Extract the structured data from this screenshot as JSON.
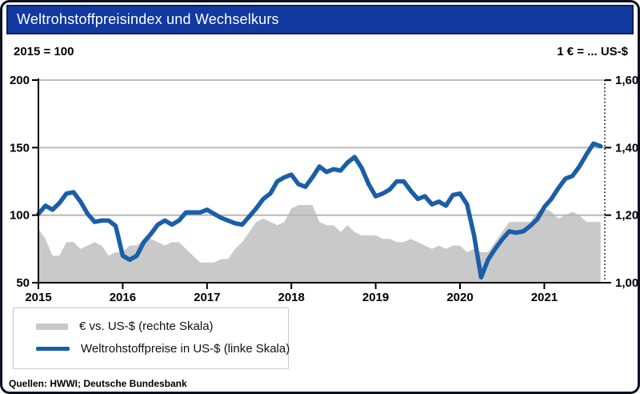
{
  "header": {
    "title": "Weltrohstoffpreisindex und Wechselkurs"
  },
  "axes": {
    "left_caption": "2015 = 100",
    "right_caption": "1 € = ... US-$"
  },
  "legend": {
    "items": [
      {
        "label": "€ vs. US-$ (rechte Skala)",
        "swatch": "area-gray-swatch"
      },
      {
        "label": "Weltrohstoffpreise in US-$ (linke Skala)",
        "swatch": "line-blue-swatch"
      }
    ]
  },
  "source": "Quellen: HWWI; Deutsche Bundesbank",
  "colors": {
    "titlebar_blue": "#11399f",
    "titlebar_border": "#0a1f5c",
    "line_blue": "#1b5ea8",
    "area_gray": "#c9c9c9",
    "grid_gray": "#b4b4b4",
    "axis_black": "#000000"
  },
  "chart_data": {
    "type": "line",
    "title": "Weltrohstoffpreisindex und Wechselkurs",
    "x_unit": "month",
    "x_start": "2015-01",
    "x_end": "2021-09",
    "x_axis": {
      "tick_labels": [
        "2015",
        "2016",
        "2017",
        "2018",
        "2019",
        "2020",
        "2021"
      ],
      "months_per_label": 12
    },
    "left_axis": {
      "caption": "2015 = 100",
      "min": 50,
      "max": 200,
      "tick_values": [
        200,
        150,
        100,
        50
      ],
      "tick_labels": [
        "200",
        "150",
        "100",
        "50"
      ],
      "gridlines": [
        100,
        150,
        200
      ]
    },
    "right_axis": {
      "caption": "1 € = ... US-$",
      "min": 1.0,
      "max": 1.6,
      "tick_values": [
        1.6,
        1.4,
        1.2,
        1.0
      ],
      "tick_labels": [
        "1,60",
        "1,40",
        "1,20",
        "1,00"
      ]
    },
    "grid": true,
    "legend_position": "bottom-left",
    "series": [
      {
        "name": "€ vs. US-$ (rechte Skala)",
        "type": "area",
        "axis": "right",
        "color": "#c9c9c9",
        "values": [
          1.16,
          1.13,
          1.08,
          1.08,
          1.12,
          1.12,
          1.1,
          1.11,
          1.12,
          1.11,
          1.08,
          1.09,
          1.09,
          1.11,
          1.11,
          1.13,
          1.13,
          1.12,
          1.11,
          1.12,
          1.12,
          1.1,
          1.08,
          1.06,
          1.06,
          1.06,
          1.07,
          1.07,
          1.1,
          1.12,
          1.15,
          1.18,
          1.19,
          1.18,
          1.17,
          1.18,
          1.22,
          1.23,
          1.23,
          1.23,
          1.18,
          1.17,
          1.17,
          1.15,
          1.17,
          1.15,
          1.14,
          1.14,
          1.14,
          1.13,
          1.13,
          1.12,
          1.12,
          1.13,
          1.12,
          1.11,
          1.1,
          1.11,
          1.1,
          1.11,
          1.11,
          1.09,
          1.1,
          1.09,
          1.09,
          1.12,
          1.15,
          1.18,
          1.18,
          1.18,
          1.18,
          1.21,
          1.22,
          1.21,
          1.19,
          1.2,
          1.21,
          1.2,
          1.18,
          1.18,
          1.18
        ]
      },
      {
        "name": "Weltrohstoffpreise in US-$ (linke Skala)",
        "type": "line",
        "axis": "left",
        "color": "#1b5ea8",
        "values": [
          101,
          107,
          104,
          109,
          116,
          117,
          110,
          101,
          95,
          96,
          96,
          92,
          70,
          67,
          70,
          80,
          86,
          93,
          96,
          93,
          96,
          102,
          102,
          102,
          104,
          101,
          98,
          96,
          94,
          93,
          99,
          105,
          112,
          116,
          125,
          128,
          130,
          123,
          121,
          128,
          136,
          132,
          134,
          133,
          139,
          143,
          135,
          123,
          114,
          116,
          119,
          125,
          125,
          118,
          112,
          114,
          108,
          110,
          107,
          115,
          116,
          108,
          85,
          54,
          67,
          75,
          82,
          88,
          87,
          88,
          92,
          97,
          106,
          112,
          120,
          127,
          129,
          136,
          145,
          153,
          151
        ]
      }
    ]
  }
}
